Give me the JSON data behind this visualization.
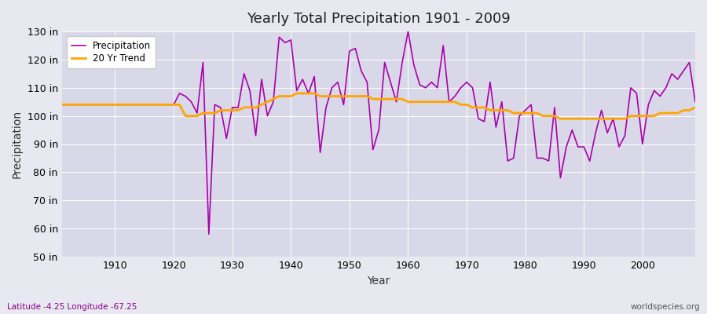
{
  "title": "Yearly Total Precipitation 1901 - 2009",
  "xlabel": "Year",
  "ylabel": "Precipitation",
  "footnote_left": "Latitude -4.25 Longitude -67.25",
  "footnote_right": "worldspecies.org",
  "legend_labels": [
    "Precipitation",
    "20 Yr Trend"
  ],
  "precip_color": "#AA00AA",
  "trend_color": "#FFA500",
  "bg_color": "#E8E8F0",
  "plot_bg_color": "#D8D8E8",
  "ylim": [
    50,
    130
  ],
  "yticks": [
    50,
    60,
    70,
    80,
    90,
    100,
    110,
    120,
    130
  ],
  "xticks": [
    1910,
    1920,
    1930,
    1940,
    1950,
    1960,
    1970,
    1980,
    1990,
    2000
  ],
  "years": [
    1901,
    1902,
    1903,
    1904,
    1905,
    1906,
    1907,
    1908,
    1909,
    1910,
    1911,
    1912,
    1913,
    1914,
    1915,
    1916,
    1917,
    1918,
    1919,
    1920,
    1921,
    1922,
    1923,
    1924,
    1925,
    1926,
    1927,
    1928,
    1929,
    1930,
    1931,
    1932,
    1933,
    1934,
    1935,
    1936,
    1937,
    1938,
    1939,
    1940,
    1941,
    1942,
    1943,
    1944,
    1945,
    1946,
    1947,
    1948,
    1949,
    1950,
    1951,
    1952,
    1953,
    1954,
    1955,
    1956,
    1957,
    1958,
    1959,
    1960,
    1961,
    1962,
    1963,
    1964,
    1965,
    1966,
    1967,
    1968,
    1969,
    1970,
    1971,
    1972,
    1973,
    1974,
    1975,
    1976,
    1977,
    1978,
    1979,
    1980,
    1981,
    1982,
    1983,
    1984,
    1985,
    1986,
    1987,
    1988,
    1989,
    1990,
    1991,
    1992,
    1993,
    1994,
    1995,
    1996,
    1997,
    1998,
    1999,
    2000,
    2001,
    2002,
    2003,
    2004,
    2005,
    2006,
    2007,
    2008,
    2009
  ],
  "precip": [
    104,
    104,
    104,
    104,
    104,
    104,
    104,
    104,
    104,
    104,
    104,
    104,
    104,
    104,
    104,
    104,
    104,
    104,
    104,
    104,
    108,
    107,
    105,
    101,
    119,
    58,
    104,
    103,
    92,
    103,
    103,
    115,
    109,
    93,
    113,
    100,
    105,
    128,
    126,
    127,
    109,
    113,
    108,
    114,
    87,
    103,
    110,
    112,
    104,
    123,
    124,
    116,
    112,
    88,
    95,
    119,
    112,
    105,
    119,
    130,
    118,
    111,
    110,
    112,
    110,
    125,
    105,
    107,
    110,
    112,
    110,
    99,
    98,
    112,
    96,
    105,
    84,
    85,
    100,
    102,
    104,
    85,
    85,
    84,
    103,
    78,
    89,
    95,
    89,
    89,
    84,
    94,
    102,
    94,
    99,
    89,
    93,
    110,
    108,
    90,
    104,
    109,
    107,
    110,
    115,
    113,
    116,
    119,
    105
  ],
  "trend": [
    104,
    104,
    104,
    104,
    104,
    104,
    104,
    104,
    104,
    104,
    104,
    104,
    104,
    104,
    104,
    104,
    104,
    104,
    104,
    104,
    104,
    100,
    100,
    100,
    101,
    101,
    101,
    102,
    102,
    102,
    102,
    103,
    103,
    103,
    104,
    105,
    106,
    107,
    107,
    107,
    108,
    108,
    108,
    108,
    107,
    107,
    107,
    107,
    107,
    107,
    107,
    107,
    107,
    106,
    106,
    106,
    106,
    106,
    106,
    105,
    105,
    105,
    105,
    105,
    105,
    105,
    105,
    105,
    104,
    104,
    103,
    103,
    103,
    102,
    102,
    102,
    102,
    101,
    101,
    101,
    101,
    101,
    100,
    100,
    100,
    99,
    99,
    99,
    99,
    99,
    99,
    99,
    99,
    99,
    99,
    99,
    99,
    100,
    100,
    100,
    100,
    100,
    101,
    101,
    101,
    101,
    102,
    102,
    103
  ]
}
